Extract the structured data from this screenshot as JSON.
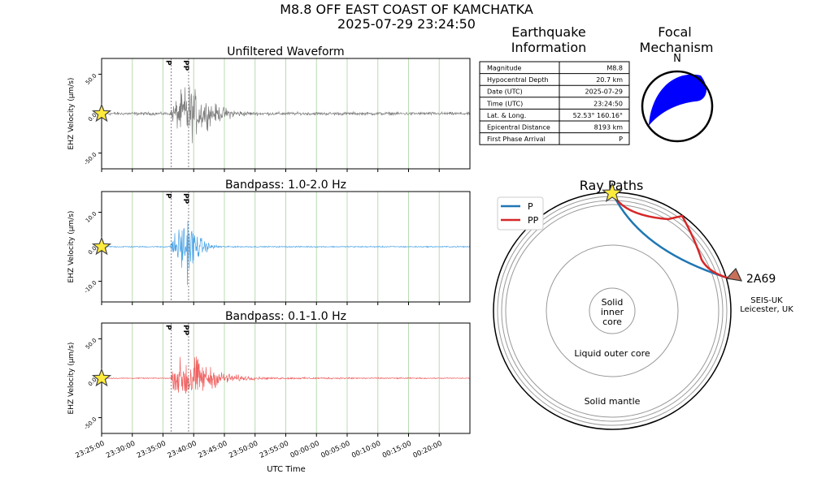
{
  "title": {
    "line1": "M8.8 OFF EAST COAST OF KAMCHATKA",
    "line2": "2025-07-29 23:24:50"
  },
  "waveform_panels": [
    {
      "title": "Unfiltered Waveform",
      "color": "#7f7f7f",
      "ylabel": "EHZ Velocity (µm/s)",
      "yticks": [
        "50.0",
        "0.0",
        "-50.0"
      ],
      "ylim": [
        -70,
        70
      ]
    },
    {
      "title": "Bandpass: 1.0-2.0 Hz",
      "color": "#4aa3e6",
      "ylabel": "EHZ Velocity (µm/s)",
      "yticks": [
        "10.0",
        "0.0",
        "-10.0"
      ],
      "ylim": [
        -16,
        16
      ]
    },
    {
      "title": "Bandpass: 0.1-1.0 Hz",
      "color": "#f06060",
      "ylabel": "EHZ Velocity (µm/s)",
      "yticks": [
        "50.0",
        "0.0",
        "-50.0"
      ],
      "ylim": [
        -70,
        70
      ]
    }
  ],
  "chart_data": {
    "type": "line",
    "xlabel": "UTC Time",
    "xticks": [
      "23:25:00",
      "23:30:00",
      "23:35:00",
      "23:40:00",
      "23:45:00",
      "23:50:00",
      "23:55:00",
      "00:00:00",
      "00:05:00",
      "00:10:00",
      "00:15:00",
      "00:20:00"
    ],
    "phase_arrivals": [
      {
        "name": "P",
        "time": "23:36:20"
      },
      {
        "name": "PP",
        "time": "23:39:10"
      }
    ],
    "event_marker": "star",
    "series": [
      {
        "values": {
          "noise": 3.0,
          "peak": 58
        }
      },
      {
        "values": {
          "noise": 0.25,
          "peak": 14
        }
      },
      {
        "values": {
          "noise": 1.0,
          "peak": 55
        }
      }
    ]
  },
  "info_table": {
    "heading": [
      "Earthquake",
      "Information"
    ],
    "rows": [
      {
        "label": "Magnitude",
        "value": "M8.8"
      },
      {
        "label": "Hypocentral Depth",
        "value": "20.7 km"
      },
      {
        "label": "Date (UTC)",
        "value": "2025-07-29"
      },
      {
        "label": "Time (UTC)",
        "value": "23:24:50"
      },
      {
        "label": "Lat. & Long.",
        "value": "52.53° 160.16°"
      },
      {
        "label": "Epicentral Distance",
        "value": "8193 km"
      },
      {
        "label": "First Phase Arrival",
        "value": "P"
      }
    ]
  },
  "focal_mechanism": {
    "heading": [
      "Focal",
      "Mechanism"
    ],
    "north": "N",
    "color": "#0000ff"
  },
  "ray_paths": {
    "title": "Ray Paths",
    "legend": [
      {
        "name": "P",
        "color": "#1f77b4"
      },
      {
        "name": "PP",
        "color": "#d62728"
      }
    ],
    "station_code": "2A69",
    "station_network": "SEIS-UK",
    "station_location": "Leicester, UK",
    "labels": {
      "inner": [
        "Solid",
        "inner",
        "core"
      ],
      "outer": "Liquid outer core",
      "mantle": "Solid mantle"
    }
  }
}
